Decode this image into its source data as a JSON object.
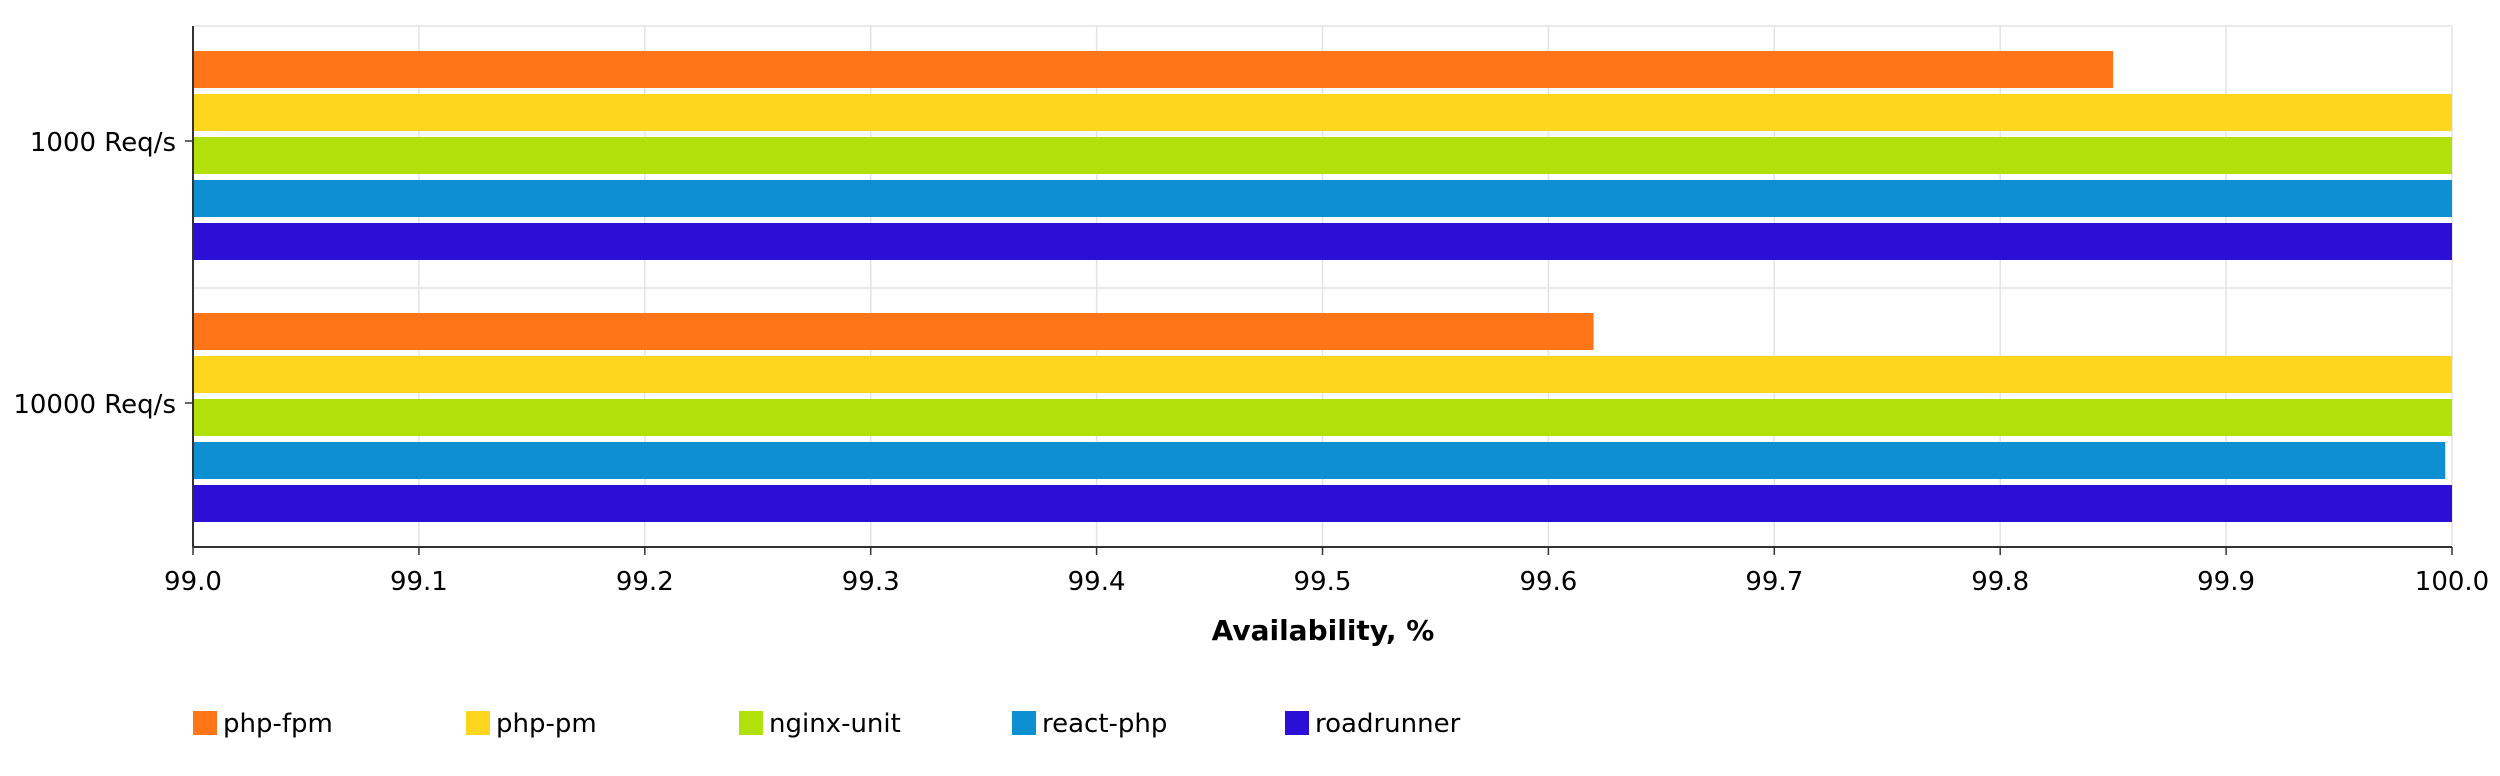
{
  "chart_data": {
    "type": "bar",
    "orientation": "horizontal",
    "categories": [
      "1000 Req/s",
      "10000 Req/s"
    ],
    "series": [
      {
        "name": "php-fpm",
        "color": "#FF7518",
        "values": [
          99.85,
          99.62
        ]
      },
      {
        "name": "php-pm",
        "color": "#FFD61E",
        "values": [
          100.0,
          100.0
        ]
      },
      {
        "name": "nginx-unit",
        "color": "#B2E00A",
        "values": [
          100.0,
          100.0
        ]
      },
      {
        "name": "react-php",
        "color": "#0E8FD2",
        "values": [
          100.0,
          99.997
        ]
      },
      {
        "name": "roadrunner",
        "color": "#2B0FD6",
        "values": [
          100.0,
          100.0
        ]
      }
    ],
    "xlabel": "Availability, %",
    "ylabel": "",
    "title": "",
    "xlim": [
      99.0,
      100.0
    ],
    "xticks": [
      "99.0",
      "99.1",
      "99.2",
      "99.3",
      "99.4",
      "99.5",
      "99.6",
      "99.7",
      "99.8",
      "99.9",
      "100.0"
    ],
    "grid": true,
    "legend_position": "bottom"
  }
}
